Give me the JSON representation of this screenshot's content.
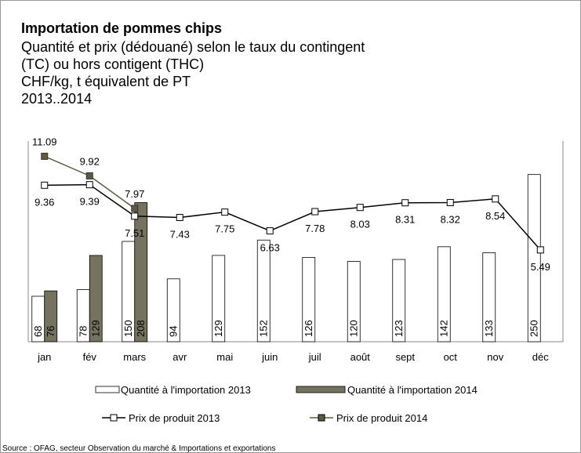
{
  "chart_data": {
    "type": "bar",
    "title": "Importation de pommes chips",
    "subtitle": [
      "Quantité et prix (dédouané) selon le taux du contingent",
      "(TC) ou hors contigent (THC)",
      "CHF/kg, t équivalent de PT",
      "2013..2014"
    ],
    "source": "Source : OFAG, secteur Observation du marché & Importations et exportations",
    "categories": [
      "jan",
      "fév",
      "mars",
      "avr",
      "mai",
      "juin",
      "juil",
      "août",
      "sept",
      "oct",
      "nov",
      "déc"
    ],
    "ylim": [
      0,
      300
    ],
    "y2lim": [
      0,
      12
    ],
    "series": [
      {
        "name": "Quantité à l'importation 2013",
        "type": "bar",
        "color": "#ffffff",
        "values": [
          68,
          78,
          150,
          94,
          129,
          152,
          126,
          120,
          123,
          142,
          133,
          250
        ]
      },
      {
        "name": "Quantité à l'importation 2014",
        "type": "bar",
        "color": "#75735f",
        "values": [
          76,
          129,
          208,
          null,
          null,
          null,
          null,
          null,
          null,
          null,
          null,
          null
        ]
      },
      {
        "name": "Prix de produit 2013",
        "type": "line",
        "axis": "y2",
        "color": "#000000",
        "values": [
          9.36,
          9.39,
          7.51,
          7.43,
          7.75,
          6.63,
          7.78,
          8.03,
          8.31,
          8.32,
          8.54,
          5.49
        ]
      },
      {
        "name": "Prix de produit 2014",
        "type": "line",
        "axis": "y2",
        "color": "#5e5a44",
        "values": [
          11.09,
          9.92,
          7.97,
          null,
          null,
          null,
          null,
          null,
          null,
          null,
          null,
          null
        ]
      }
    ]
  }
}
